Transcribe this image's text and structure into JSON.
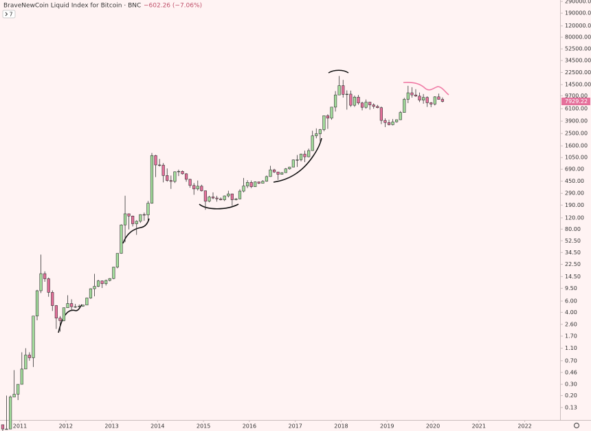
{
  "chart_data": {
    "type": "candlestick",
    "title": "BraveNewCoin Liquid Index for Bitcoin · BNC",
    "change_label": "−602.26 (−7.06%)",
    "indicator_count": 7,
    "last_value_label": "7929.22",
    "log_y": true,
    "grid": false,
    "up_color": "#a3dc9c",
    "down_color": "#e5709b",
    "x": [
      2010.625,
      2010.708,
      2010.792,
      2010.875,
      2010.958,
      2011.042,
      2011.125,
      2011.208,
      2011.292,
      2011.375,
      2011.458,
      2011.542,
      2011.625,
      2011.708,
      2011.792,
      2011.875,
      2011.958,
      2012.042,
      2012.125,
      2012.208,
      2012.292,
      2012.375,
      2012.458,
      2012.542,
      2012.625,
      2012.708,
      2012.792,
      2012.875,
      2012.958,
      2013.042,
      2013.125,
      2013.208,
      2013.292,
      2013.375,
      2013.458,
      2013.542,
      2013.625,
      2013.708,
      2013.792,
      2013.875,
      2013.958,
      2014.042,
      2014.125,
      2014.208,
      2014.292,
      2014.375,
      2014.458,
      2014.542,
      2014.625,
      2014.708,
      2014.792,
      2014.875,
      2014.958,
      2015.042,
      2015.125,
      2015.208,
      2015.292,
      2015.375,
      2015.458,
      2015.542,
      2015.625,
      2015.708,
      2015.792,
      2015.875,
      2015.958,
      2016.042,
      2016.125,
      2016.208,
      2016.292,
      2016.375,
      2016.458,
      2016.542,
      2016.625,
      2016.708,
      2016.792,
      2016.875,
      2016.958,
      2017.042,
      2017.125,
      2017.208,
      2017.292,
      2017.375,
      2017.458,
      2017.542,
      2017.625,
      2017.708,
      2017.792,
      2017.875,
      2017.958,
      2018.042,
      2018.125,
      2018.208,
      2018.292,
      2018.375,
      2018.458,
      2018.542,
      2018.625,
      2018.708,
      2018.792,
      2018.875,
      2018.958,
      2019.042,
      2019.125,
      2019.208,
      2019.292,
      2019.375,
      2019.458,
      2019.542,
      2019.625,
      2019.708,
      2019.792,
      2019.875,
      2019.958,
      2020.042,
      2020.125,
      2020.208
    ],
    "open": [
      0.07,
      0.06,
      0.06,
      0.19,
      0.21,
      0.3,
      0.52,
      0.86,
      0.78,
      3.5,
      8.7,
      16.1,
      13.4,
      8.2,
      5.1,
      3.25,
      2.97,
      4.72,
      5.5,
      4.9,
      4.9,
      5,
      5.2,
      6.7,
      9.35,
      10.2,
      12.4,
      11.2,
      12.6,
      13.5,
      20.4,
      33.4,
      93,
      139,
      128,
      97,
      106,
      135,
      133,
      203,
      1130,
      805,
      800,
      550,
      460,
      445,
      630,
      640,
      585,
      480,
      385,
      340,
      375,
      318,
      218,
      255,
      245,
      237,
      230,
      264,
      284,
      230,
      237,
      314,
      378,
      430,
      368,
      438,
      416,
      448,
      530,
      675,
      625,
      575,
      610,
      700,
      745,
      965,
      970,
      1190,
      1080,
      1350,
      2300,
      2480,
      2870,
      4740,
      4340,
      6450,
      10000,
      14000,
      10200,
      10300,
      6900,
      9250,
      7500,
      6400,
      7730,
      7000,
      6620,
      6320,
      4000,
      3700,
      3430,
      3800,
      4100,
      5320,
      8550,
      10800,
      10000,
      9600,
      8300,
      9150,
      7550,
      7200,
      9350,
      8531.48
    ],
    "high": [
      0.07,
      0.2,
      0.2,
      0.5,
      0.3,
      0.95,
      1.1,
      0.95,
      3.5,
      9,
      32,
      17.5,
      14,
      8.8,
      5.2,
      3.5,
      4.7,
      7.4,
      6.4,
      5.4,
      5.3,
      5.2,
      6.8,
      9.5,
      16,
      12.9,
      12.6,
      13,
      13.7,
      20.6,
      33.5,
      95,
      266,
      140,
      130,
      110,
      136,
      145,
      220,
      1240,
      1160,
      1000,
      860,
      710,
      550,
      640,
      680,
      660,
      600,
      490,
      420,
      460,
      395,
      320,
      265,
      300,
      265,
      250,
      268,
      318,
      286,
      245,
      335,
      505,
      465,
      460,
      445,
      440,
      465,
      550,
      780,
      700,
      630,
      620,
      720,
      755,
      980,
      1150,
      1210,
      1350,
      1450,
      2760,
      3000,
      2950,
      4750,
      5000,
      6470,
      11500,
      19800,
      17200,
      11800,
      11700,
      9800,
      10000,
      7800,
      8500,
      7750,
      7400,
      7000,
      6600,
      4300,
      4100,
      4200,
      4150,
      5600,
      9000,
      13900,
      13200,
      12300,
      10900,
      10350,
      9500,
      7750,
      9550,
      10500,
      9150
    ],
    "low": [
      0.05,
      0.06,
      0.06,
      0.19,
      0.17,
      0.3,
      0.52,
      0.7,
      0.56,
      3,
      8,
      12,
      7,
      4.2,
      2.2,
      2,
      2.9,
      4.7,
      4.2,
      4.7,
      4.8,
      4.9,
      5.2,
      6.5,
      7.1,
      9.9,
      9.6,
      10.5,
      12.2,
      13.2,
      19.5,
      33,
      50,
      79,
      88,
      65,
      100,
      108,
      109,
      200,
      520,
      760,
      430,
      440,
      340,
      420,
      540,
      570,
      440,
      355,
      275,
      320,
      310,
      160,
      210,
      235,
      215,
      225,
      220,
      250,
      185,
      225,
      235,
      300,
      350,
      350,
      365,
      405,
      415,
      440,
      525,
      605,
      470,
      570,
      605,
      680,
      740,
      750,
      915,
      890,
      1060,
      1340,
      2100,
      1830,
      2700,
      2950,
      4100,
      5500,
      10000,
      9100,
      5900,
      6500,
      6500,
      7050,
      5750,
      6100,
      5880,
      6100,
      6200,
      3500,
      3150,
      3350,
      3350,
      3700,
      4050,
      5280,
      7450,
      9100,
      9350,
      7750,
      7300,
      6500,
      6450,
      6850,
      8450,
      7650
    ],
    "close": [
      0.06,
      0.06,
      0.19,
      0.21,
      0.3,
      0.52,
      0.86,
      0.78,
      3.5,
      8.7,
      16.1,
      13.4,
      8.2,
      5.1,
      3.25,
      2.97,
      4.72,
      5.5,
      4.9,
      4.9,
      5,
      5.2,
      6.7,
      9.35,
      10.2,
      12.4,
      11.2,
      12.6,
      13.5,
      20.4,
      33.4,
      93,
      139,
      128,
      97,
      106,
      135,
      133,
      203,
      1130,
      805,
      800,
      550,
      460,
      445,
      630,
      640,
      585,
      480,
      385,
      340,
      375,
      318,
      218,
      255,
      245,
      237,
      230,
      264,
      284,
      230,
      237,
      314,
      378,
      430,
      368,
      438,
      416,
      448,
      530,
      675,
      625,
      575,
      610,
      700,
      745,
      965,
      970,
      1190,
      1080,
      1350,
      2300,
      2480,
      2870,
      4740,
      4340,
      6450,
      10000,
      14000,
      10200,
      10300,
      6900,
      9250,
      7500,
      6400,
      7730,
      7000,
      6620,
      6320,
      4000,
      3700,
      3430,
      3800,
      4100,
      5320,
      8550,
      10800,
      10000,
      9600,
      8300,
      9150,
      7550,
      7200,
      9350,
      8531.48,
      7929.22
    ],
    "xlim": [
      2010.566,
      2022.77
    ],
    "xticks": [
      2011,
      2012,
      2013,
      2014,
      2015,
      2016,
      2017,
      2018,
      2019,
      2020,
      2021,
      2022
    ],
    "ylim": [
      0.083,
      305000
    ],
    "yticks": [
      {
        "value": 290000,
        "label": "290000.00"
      },
      {
        "value": 190000,
        "label": "190000.00"
      },
      {
        "value": 120000,
        "label": "120000.00"
      },
      {
        "value": 80000,
        "label": "80000.00"
      },
      {
        "value": 52500,
        "label": "52500.00"
      },
      {
        "value": 34500,
        "label": "34500.00"
      },
      {
        "value": 22500,
        "label": "22500.00"
      },
      {
        "value": 14500,
        "label": "14500.00"
      },
      {
        "value": 9700,
        "label": "9700.00"
      },
      {
        "value": 6100,
        "label": "6100.00"
      },
      {
        "value": 3900,
        "label": "3900.00"
      },
      {
        "value": 2500,
        "label": "2500.00"
      },
      {
        "value": 1600,
        "label": "1600.00"
      },
      {
        "value": 1050,
        "label": "1050.00"
      },
      {
        "value": 690,
        "label": "690.00"
      },
      {
        "value": 450,
        "label": "450.00"
      },
      {
        "value": 290,
        "label": "290.00"
      },
      {
        "value": 190,
        "label": "190.00"
      },
      {
        "value": 120,
        "label": "120.00"
      },
      {
        "value": 80,
        "label": "80.00"
      },
      {
        "value": 52.5,
        "label": "52.50"
      },
      {
        "value": 34.5,
        "label": "34.50"
      },
      {
        "value": 22.5,
        "label": "22.50"
      },
      {
        "value": 14.5,
        "label": "14.50"
      },
      {
        "value": 9.5,
        "label": "9.50"
      },
      {
        "value": 6,
        "label": "6.00"
      },
      {
        "value": 4,
        "label": "4.00"
      },
      {
        "value": 2.6,
        "label": "2.60"
      },
      {
        "value": 1.7,
        "label": "1.70"
      },
      {
        "value": 1.1,
        "label": "1.10"
      },
      {
        "value": 0.7,
        "label": "0.70"
      },
      {
        "value": 0.46,
        "label": "0.46"
      },
      {
        "value": 0.3,
        "label": "0.30"
      },
      {
        "value": 0.2,
        "label": "0.20"
      },
      {
        "value": 0.13,
        "label": "0.13"
      }
    ]
  }
}
